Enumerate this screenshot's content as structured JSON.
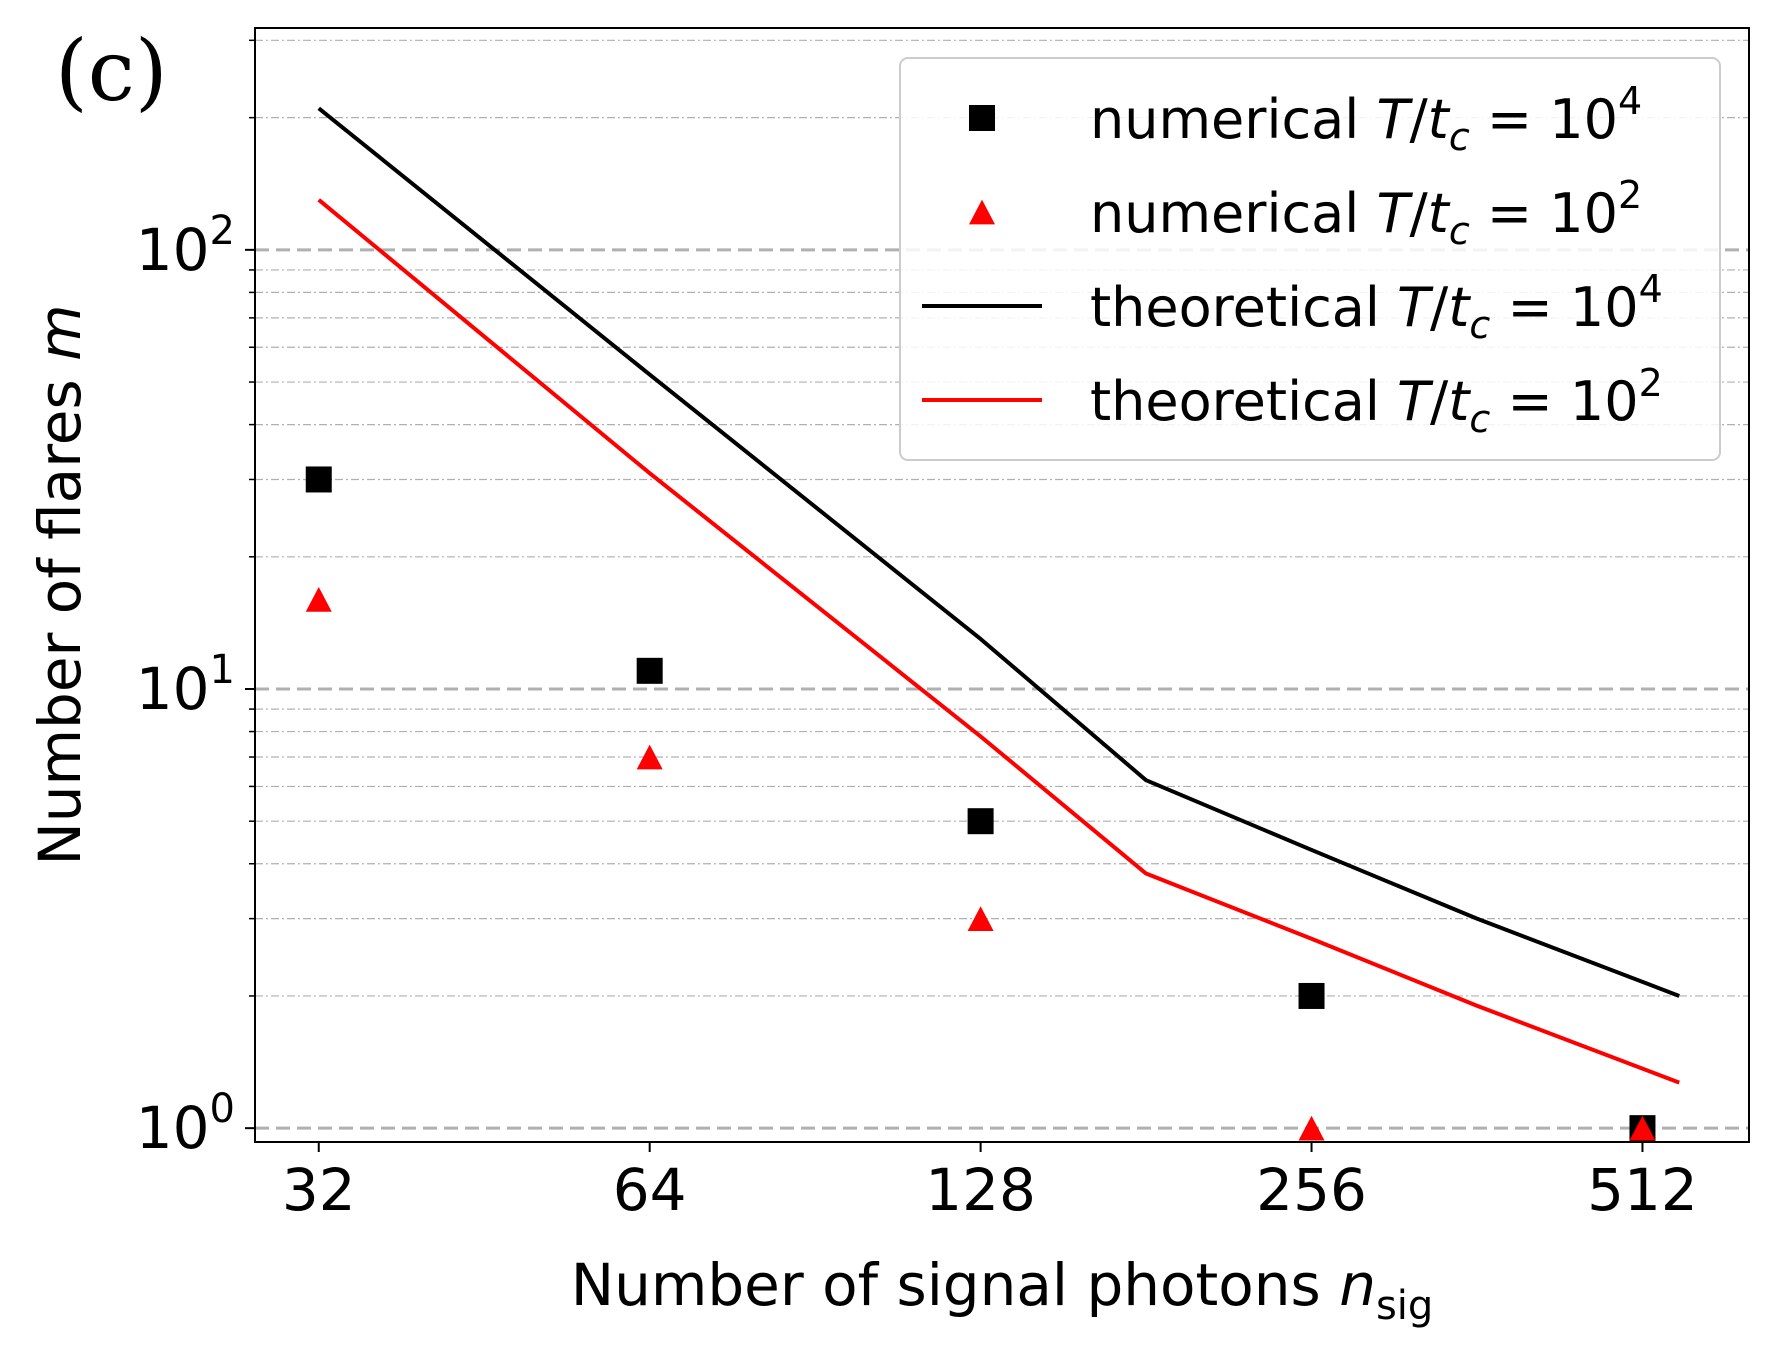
{
  "panel_label": "(c)",
  "chart_data": {
    "type": "line",
    "xscale": "log2",
    "yscale": "log10",
    "x_ticks": [
      32,
      64,
      128,
      256,
      512
    ],
    "x_tick_labels": [
      "32",
      "64",
      "128",
      "256",
      "512"
    ],
    "xlim": [
      28,
      640
    ],
    "ylim": [
      0.93,
      320
    ],
    "y_major_ticks": [
      1,
      10,
      100
    ],
    "y_tick_labels": [
      {
        "base": "10",
        "exp": "0"
      },
      {
        "base": "10",
        "exp": "1"
      },
      {
        "base": "10",
        "exp": "2"
      }
    ],
    "xlabel": {
      "main": "Number of signal photons ",
      "var": "n",
      "sub": "sig"
    },
    "ylabel": {
      "main": "Number of flares ",
      "var": "m"
    },
    "grid": {
      "major": "dashed",
      "minor": "dash-dot",
      "axis": "y"
    },
    "colors": {
      "black": "#000000",
      "red": "#ff0000",
      "grid_major": "#b0b0b0",
      "grid_minor": "#b0b0b0",
      "legend_border": "#cccccc"
    },
    "series": [
      {
        "name": "numerical T/tc = 10^4",
        "kind": "scatter",
        "marker": "square",
        "color": "#000000",
        "legend": {
          "prefix": "numerical ",
          "exp": "4"
        },
        "x": [
          32,
          64,
          128,
          256,
          512
        ],
        "y": [
          30,
          11,
          5,
          2,
          1
        ]
      },
      {
        "name": "numerical T/tc = 10^2",
        "kind": "scatter",
        "marker": "triangle",
        "color": "#ff0000",
        "legend": {
          "prefix": "numerical ",
          "exp": "2"
        },
        "x": [
          32,
          64,
          128,
          256,
          512
        ],
        "y": [
          16,
          7,
          3,
          1,
          1
        ]
      },
      {
        "name": "theoretical T/tc = 10^4",
        "kind": "line",
        "color": "#000000",
        "legend": {
          "prefix": "theoretical ",
          "exp": "4"
        },
        "x": [
          32,
          64,
          128,
          181,
          256,
          362,
          553
        ],
        "y": [
          210,
          52,
          13,
          6.2,
          4.3,
          3,
          2
        ]
      },
      {
        "name": "theoretical T/tc = 10^2",
        "kind": "line",
        "color": "#ff0000",
        "legend": {
          "prefix": "theoretical ",
          "exp": "2"
        },
        "x": [
          32,
          64,
          128,
          181,
          256,
          362,
          553
        ],
        "y": [
          130,
          31,
          7.8,
          3.8,
          2.7,
          1.9,
          1.27
        ]
      }
    ],
    "legend_position": "top-right"
  }
}
